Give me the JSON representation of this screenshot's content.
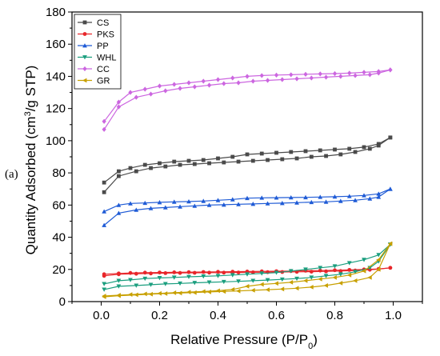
{
  "panel_label": "(a)",
  "chart_data": {
    "type": "line",
    "xlabel": "Relative Pressure (P/P",
    "xlabel_sub": "0",
    "xlabel_end": ")",
    "ylabel": "Quantity Adsorbed (cm",
    "ylabel_sup": "3",
    "ylabel_end": "/g STP)",
    "xlim": [
      -0.1,
      1.1
    ],
    "ylim": [
      0,
      180
    ],
    "xticks": [
      0.0,
      0.2,
      0.4,
      0.6,
      0.8,
      1.0
    ],
    "xtick_labels": [
      "0.0",
      "0.2",
      "0.4",
      "0.6",
      "0.8",
      "1.0"
    ],
    "yticks": [
      0,
      20,
      40,
      60,
      80,
      100,
      120,
      140,
      160,
      180
    ],
    "ytick_labels": [
      "0",
      "20",
      "40",
      "60",
      "80",
      "100",
      "120",
      "140",
      "160",
      "180"
    ],
    "legend_position": "top-left",
    "series": [
      {
        "name": "CS",
        "color": "#4a4a4a",
        "marker": "square",
        "adsorption": {
          "x": [
            0.01,
            0.06,
            0.12,
            0.17,
            0.22,
            0.27,
            0.32,
            0.37,
            0.42,
            0.47,
            0.52,
            0.57,
            0.62,
            0.67,
            0.72,
            0.77,
            0.82,
            0.87,
            0.92,
            0.95,
            0.99
          ],
          "y": [
            68,
            78,
            81,
            83,
            84,
            85,
            85.5,
            86,
            86.5,
            87,
            87.5,
            88,
            88.5,
            89,
            90,
            90.5,
            91.5,
            93,
            95,
            97,
            102
          ]
        },
        "desorption": {
          "x": [
            0.99,
            0.95,
            0.9,
            0.85,
            0.8,
            0.75,
            0.7,
            0.65,
            0.6,
            0.55,
            0.5,
            0.45,
            0.4,
            0.35,
            0.3,
            0.25,
            0.2,
            0.15,
            0.1,
            0.06,
            0.01
          ],
          "y": [
            102,
            98,
            96,
            95,
            94.5,
            94,
            93.5,
            93,
            92.5,
            92,
            91.5,
            90,
            89,
            88,
            87.5,
            87,
            86,
            85,
            83,
            81,
            74
          ]
        }
      },
      {
        "name": "PKS",
        "color": "#e8262a",
        "marker": "circle",
        "adsorption": {
          "x": [
            0.01,
            0.06,
            0.12,
            0.17,
            0.22,
            0.27,
            0.32,
            0.37,
            0.42,
            0.47,
            0.52,
            0.57,
            0.62,
            0.67,
            0.72,
            0.77,
            0.82,
            0.87,
            0.92,
            0.95,
            0.99
          ],
          "y": [
            16,
            17,
            17.3,
            17.5,
            17.7,
            17.8,
            17.9,
            18,
            18,
            18.1,
            18.2,
            18.3,
            18.4,
            18.5,
            18.6,
            18.8,
            19,
            19.3,
            19.8,
            20.2,
            21
          ]
        },
        "desorption": {
          "x": [
            0.99,
            0.95,
            0.9,
            0.85,
            0.8,
            0.75,
            0.7,
            0.65,
            0.6,
            0.55,
            0.5,
            0.45,
            0.4,
            0.35,
            0.3,
            0.25,
            0.2,
            0.15,
            0.1,
            0.06,
            0.01
          ],
          "y": [
            21,
            20.3,
            20,
            19.7,
            19.5,
            19.3,
            19.2,
            19,
            18.9,
            18.8,
            18.7,
            18.6,
            18.5,
            18.4,
            18.3,
            18.2,
            18.1,
            18,
            17.8,
            17.5,
            17
          ]
        }
      },
      {
        "name": "PP",
        "color": "#1f5bd6",
        "marker": "triangle-up",
        "adsorption": {
          "x": [
            0.01,
            0.06,
            0.12,
            0.17,
            0.22,
            0.27,
            0.32,
            0.37,
            0.42,
            0.47,
            0.52,
            0.57,
            0.62,
            0.67,
            0.72,
            0.77,
            0.82,
            0.87,
            0.92,
            0.95,
            0.99
          ],
          "y": [
            47.5,
            55,
            57,
            58,
            58.5,
            59,
            59.5,
            60,
            60.2,
            60.5,
            60.7,
            61,
            61.2,
            61.5,
            61.8,
            62,
            62.5,
            63,
            64,
            65,
            70
          ]
        },
        "desorption": {
          "x": [
            0.99,
            0.95,
            0.9,
            0.85,
            0.8,
            0.75,
            0.7,
            0.65,
            0.6,
            0.55,
            0.5,
            0.45,
            0.4,
            0.35,
            0.3,
            0.25,
            0.2,
            0.15,
            0.1,
            0.06,
            0.01
          ],
          "y": [
            70,
            67,
            66,
            65.5,
            65.2,
            65,
            64.8,
            64.7,
            64.6,
            64.5,
            64.3,
            63.5,
            63,
            62.5,
            62.2,
            62,
            61.7,
            61.3,
            61,
            60,
            56
          ]
        }
      },
      {
        "name": "WHL",
        "color": "#1a9e7e",
        "marker": "triangle-down",
        "adsorption": {
          "x": [
            0.01,
            0.06,
            0.12,
            0.17,
            0.22,
            0.27,
            0.32,
            0.37,
            0.42,
            0.47,
            0.52,
            0.57,
            0.62,
            0.67,
            0.72,
            0.77,
            0.82,
            0.87,
            0.92,
            0.95,
            0.99
          ],
          "y": [
            7.5,
            9.5,
            10,
            10.5,
            11,
            11.3,
            11.7,
            12,
            12.3,
            12.6,
            13,
            13.4,
            13.8,
            14.3,
            15,
            16,
            17,
            18.5,
            21,
            25,
            35.5
          ]
        },
        "desorption": {
          "x": [
            0.99,
            0.95,
            0.9,
            0.85,
            0.8,
            0.75,
            0.7,
            0.65,
            0.6,
            0.55,
            0.5,
            0.45,
            0.4,
            0.35,
            0.3,
            0.25,
            0.2,
            0.15,
            0.1,
            0.06,
            0.01
          ],
          "y": [
            35.5,
            29,
            26,
            24,
            22,
            21,
            20,
            19,
            18,
            17.5,
            17,
            16.5,
            16,
            15.7,
            15.4,
            15,
            14.7,
            14.3,
            13.5,
            13,
            11
          ]
        }
      },
      {
        "name": "CC",
        "color": "#cc66e0",
        "marker": "diamond",
        "adsorption": {
          "x": [
            0.01,
            0.06,
            0.12,
            0.17,
            0.22,
            0.27,
            0.32,
            0.37,
            0.42,
            0.47,
            0.52,
            0.57,
            0.62,
            0.67,
            0.72,
            0.77,
            0.82,
            0.87,
            0.92,
            0.95,
            0.99
          ],
          "y": [
            107,
            121,
            127,
            129,
            131,
            132.5,
            133.5,
            134.5,
            135.5,
            136,
            137,
            137.5,
            138,
            138.5,
            139,
            139.5,
            140,
            140.5,
            141,
            142,
            144
          ]
        },
        "desorption": {
          "x": [
            0.99,
            0.95,
            0.9,
            0.85,
            0.8,
            0.75,
            0.7,
            0.65,
            0.6,
            0.55,
            0.5,
            0.45,
            0.4,
            0.35,
            0.3,
            0.25,
            0.2,
            0.15,
            0.1,
            0.06,
            0.01
          ],
          "y": [
            144,
            143,
            142.5,
            142,
            141.7,
            141.5,
            141.3,
            141,
            140.8,
            140.5,
            140,
            139,
            138,
            137,
            136,
            135,
            134,
            132,
            130,
            124,
            112
          ]
        }
      },
      {
        "name": "GR",
        "color": "#c8a000",
        "marker": "triangle-left",
        "adsorption": {
          "x": [
            0.01,
            0.06,
            0.12,
            0.17,
            0.22,
            0.27,
            0.32,
            0.37,
            0.42,
            0.47,
            0.52,
            0.57,
            0.62,
            0.67,
            0.72,
            0.77,
            0.82,
            0.87,
            0.92,
            0.95,
            0.99
          ],
          "y": [
            3,
            3.7,
            4.2,
            4.6,
            5,
            5.3,
            5.6,
            6,
            6.3,
            6.6,
            7,
            7.4,
            7.8,
            8.3,
            9,
            10,
            11.5,
            13,
            15,
            20,
            36
          ]
        },
        "desorption": {
          "x": [
            0.99,
            0.95,
            0.9,
            0.85,
            0.8,
            0.75,
            0.7,
            0.65,
            0.6,
            0.55,
            0.5,
            0.45,
            0.4,
            0.35,
            0.3,
            0.25,
            0.2,
            0.15,
            0.1,
            0.06,
            0.01
          ],
          "y": [
            36,
            26,
            19,
            16.5,
            15,
            14,
            13,
            12,
            11.3,
            10.7,
            9.5,
            7.5,
            6.8,
            6.3,
            5.9,
            5.5,
            5.1,
            4.8,
            4.4,
            4,
            3.5
          ]
        }
      }
    ]
  }
}
